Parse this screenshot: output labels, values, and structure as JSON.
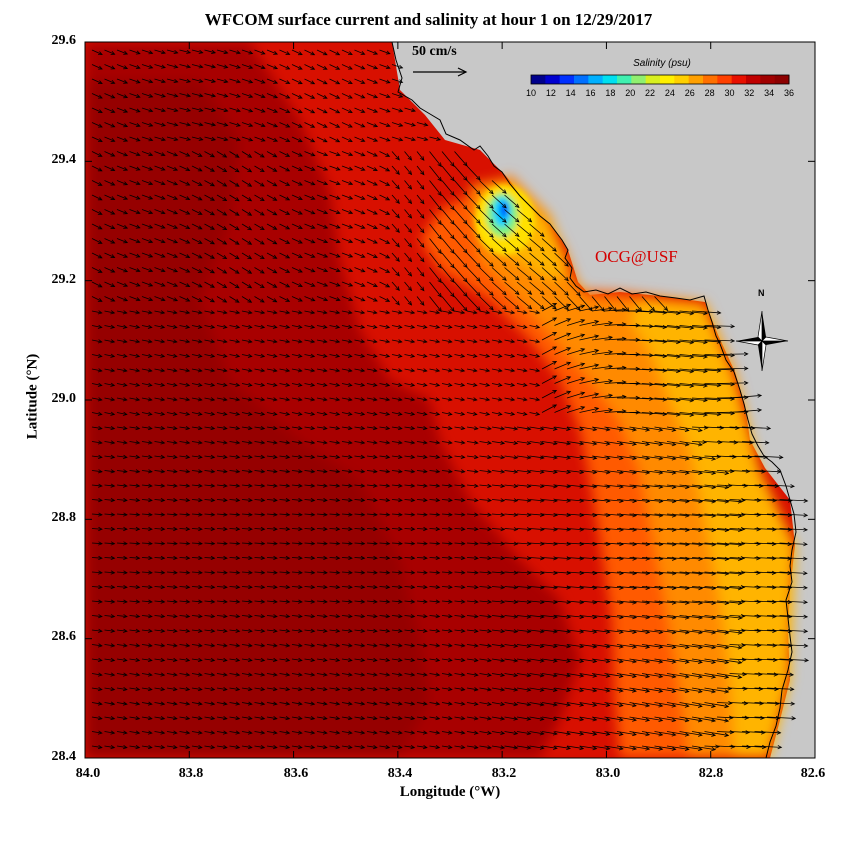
{
  "title": "WFCOM surface current and salinity at hour 1 on 12/29/2017",
  "x_axis": {
    "label": "Longitude (°W)",
    "ticks": [
      "84.0",
      "83.8",
      "83.6",
      "83.4",
      "83.2",
      "83.0",
      "82.8",
      "82.6"
    ]
  },
  "y_axis": {
    "label": "Latitude (°N)",
    "ticks": [
      "29.6",
      "29.4",
      "29.2",
      "29.0",
      "28.8",
      "28.6",
      "28.4"
    ]
  },
  "vector_scale": {
    "label": "50 cm/s"
  },
  "colorbar": {
    "title": "Salinity (psu)",
    "ticks": [
      "10",
      "12",
      "14",
      "16",
      "18",
      "20",
      "22",
      "24",
      "26",
      "28",
      "30",
      "32",
      "34",
      "36"
    ],
    "colors": [
      "#00008c",
      "#0000d0",
      "#0030ff",
      "#0070ff",
      "#00b0ff",
      "#00e0f0",
      "#40f0b0",
      "#90f070",
      "#d8f020",
      "#fff000",
      "#ffd000",
      "#ffa000",
      "#ff7000",
      "#ff4000",
      "#e81000",
      "#c00000",
      "#a00000",
      "#8c0000"
    ]
  },
  "watermark": "OCG@USF",
  "compass_label": "N",
  "map_colors": {
    "land": "#c8c8c8",
    "coast": "#000000",
    "deep_salinity": "#a00000"
  }
}
